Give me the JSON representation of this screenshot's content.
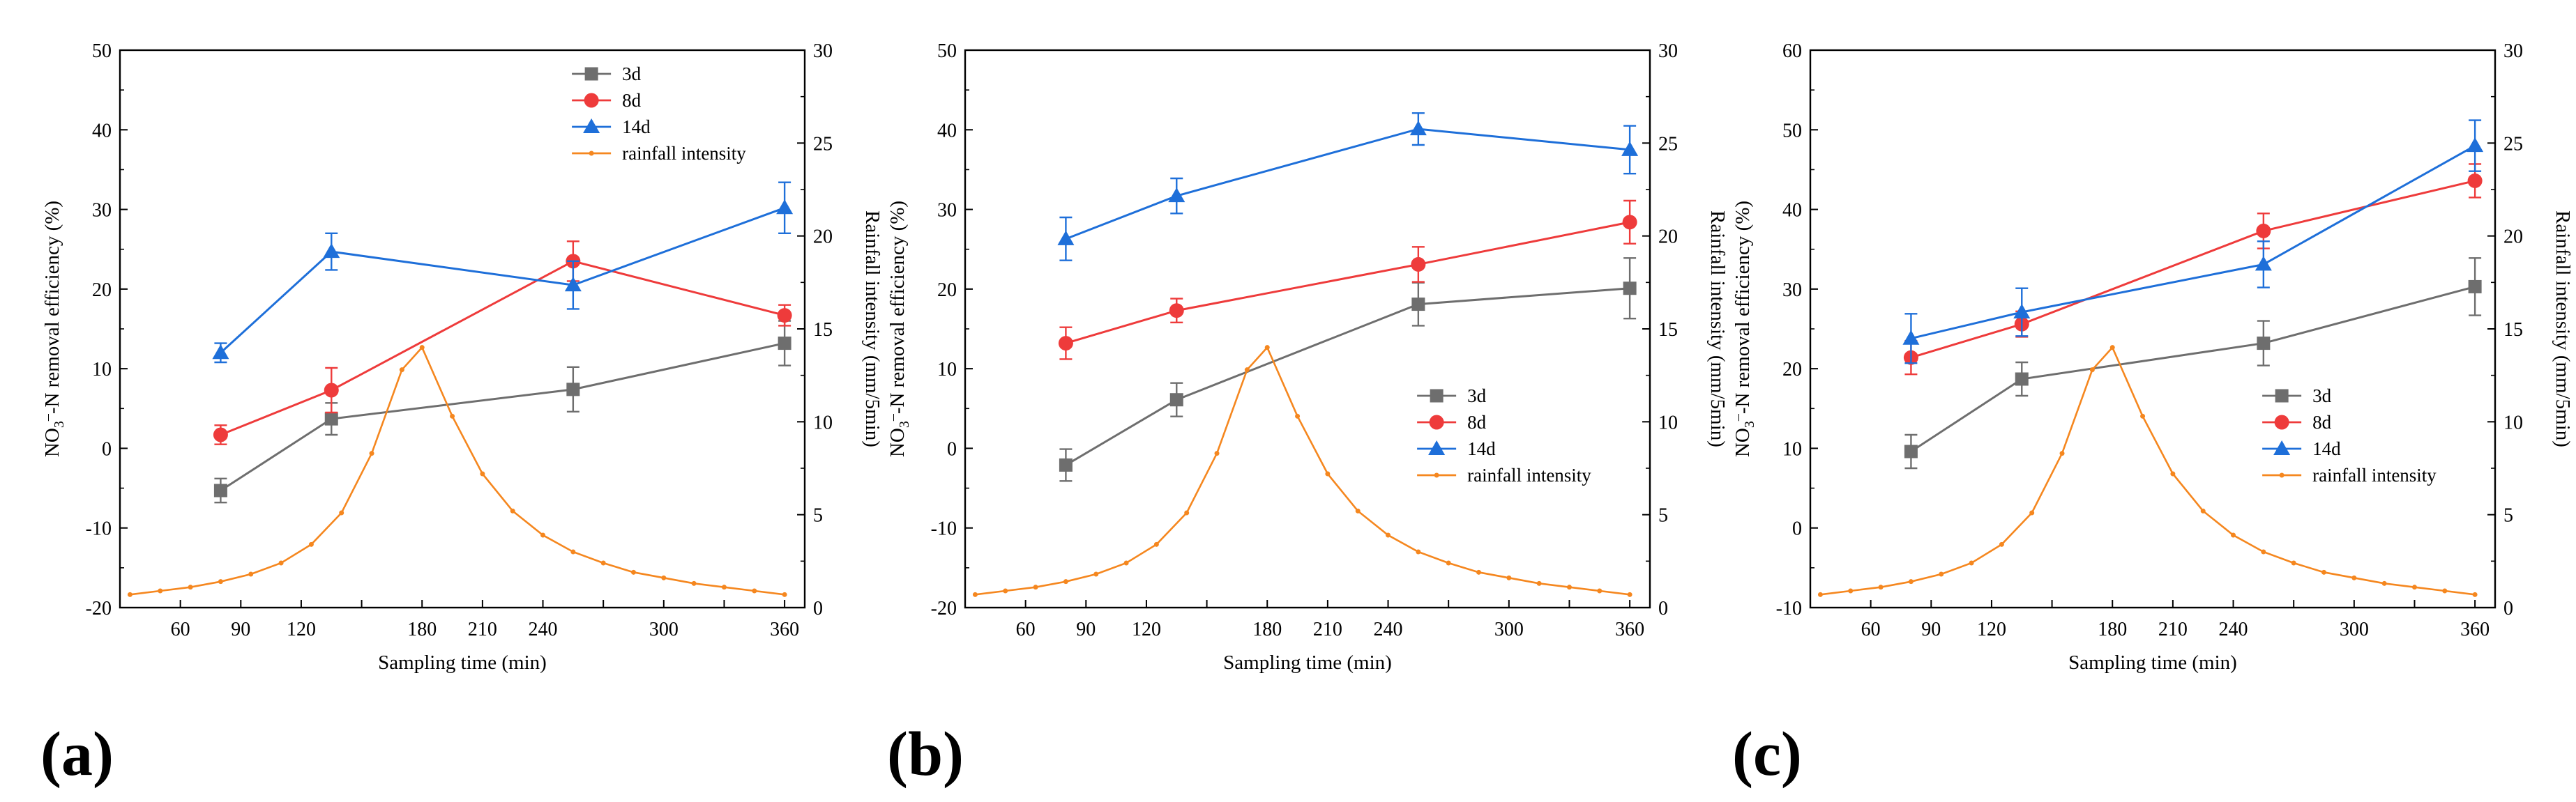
{
  "chart_data": [
    {
      "type": "line",
      "panel_label": "(a)",
      "xlabel": "Sampling time (min)",
      "ylabel": "NO3–-N removal efficiency (%)",
      "ylabel_parts": {
        "base": "NO",
        "sub": "3",
        "sup": "–",
        "rest": "-N removal efficiency (%)"
      },
      "y2label": "Rainfall intensity (mm/5min)",
      "xlim": [
        30,
        370
      ],
      "xticks": [
        60,
        90,
        120,
        150,
        180,
        210,
        240,
        270,
        300,
        330,
        360
      ],
      "xticklabels": [
        "60",
        "90",
        "120",
        "180",
        "210",
        "240",
        "300",
        "360"
      ],
      "xticklabel_values": [
        60,
        90,
        120,
        180,
        210,
        240,
        300,
        360
      ],
      "ylim": [
        -20,
        50
      ],
      "yticks": [
        -20,
        -10,
        0,
        10,
        20,
        30,
        40,
        50
      ],
      "y2lim": [
        0,
        30
      ],
      "y2ticks": [
        0,
        5,
        10,
        15,
        20,
        25,
        30
      ],
      "legend_position": "top-right",
      "series": [
        {
          "name": "3d",
          "color": "#6e6e6e",
          "marker": "square",
          "x": [
            80,
            135,
            255,
            360
          ],
          "values": [
            -5.3,
            3.7,
            7.4,
            13.2
          ],
          "errors": [
            1.5,
            2.0,
            2.8,
            2.8
          ]
        },
        {
          "name": "8d",
          "color": "#ee3b3b",
          "marker": "circle",
          "x": [
            80,
            135,
            255,
            360
          ],
          "values": [
            1.7,
            7.3,
            23.5,
            16.7
          ],
          "errors": [
            1.2,
            2.8,
            2.5,
            1.3
          ]
        },
        {
          "name": "14d",
          "color": "#1e6fd9",
          "marker": "triangle",
          "x": [
            80,
            135,
            255,
            360
          ],
          "values": [
            12.0,
            24.7,
            20.5,
            30.2
          ],
          "errors": [
            1.2,
            2.3,
            3.0,
            3.2
          ]
        },
        {
          "name": "rainfall intensity",
          "color": "#f5871f",
          "marker": "dot",
          "axis": "right",
          "x": [
            35,
            50,
            65,
            80,
            95,
            110,
            125,
            140,
            155,
            170,
            180,
            195,
            210,
            225,
            240,
            255,
            270,
            285,
            300,
            315,
            330,
            345,
            360
          ],
          "values": [
            0.7,
            0.9,
            1.1,
            1.4,
            1.8,
            2.4,
            3.4,
            5.1,
            8.3,
            12.8,
            14.0,
            10.3,
            7.2,
            5.2,
            3.9,
            3.0,
            2.4,
            1.9,
            1.6,
            1.3,
            1.1,
            0.9,
            0.7
          ]
        }
      ]
    },
    {
      "type": "line",
      "panel_label": "(b)",
      "xlabel": "Sampling time (min)",
      "ylabel": "NO3–-N removal efficiency (%)",
      "ylabel_parts": {
        "base": "NO",
        "sub": "3",
        "sup": "–",
        "rest": "-N removal efficiency (%)"
      },
      "y2label": "Rainfall intensity (mm/5min)",
      "xlim": [
        30,
        370
      ],
      "xticks": [
        60,
        90,
        120,
        150,
        180,
        210,
        240,
        270,
        300,
        330,
        360
      ],
      "xticklabels": [
        "60",
        "90",
        "120",
        "180",
        "210",
        "240",
        "300",
        "360"
      ],
      "xticklabel_values": [
        60,
        90,
        120,
        180,
        210,
        240,
        300,
        360
      ],
      "ylim": [
        -20,
        50
      ],
      "yticks": [
        -20,
        -10,
        0,
        10,
        20,
        30,
        40,
        50
      ],
      "y2lim": [
        0,
        30
      ],
      "y2ticks": [
        0,
        5,
        10,
        15,
        20,
        25,
        30
      ],
      "legend_position": "center-right",
      "series": [
        {
          "name": "3d",
          "color": "#6e6e6e",
          "marker": "square",
          "x": [
            80,
            135,
            255,
            360
          ],
          "values": [
            -2.1,
            6.1,
            18.1,
            20.1
          ],
          "errors": [
            2.0,
            2.1,
            2.7,
            3.8
          ]
        },
        {
          "name": "8d",
          "color": "#ee3b3b",
          "marker": "circle",
          "x": [
            80,
            135,
            255,
            360
          ],
          "values": [
            13.2,
            17.3,
            23.1,
            28.4
          ],
          "errors": [
            2.0,
            1.5,
            2.2,
            2.7
          ]
        },
        {
          "name": "14d",
          "color": "#1e6fd9",
          "marker": "triangle",
          "x": [
            80,
            135,
            255,
            360
          ],
          "values": [
            26.3,
            31.7,
            40.1,
            37.5
          ],
          "errors": [
            2.7,
            2.2,
            2.0,
            3.0
          ]
        },
        {
          "name": "rainfall intensity",
          "color": "#f5871f",
          "marker": "dot",
          "axis": "right",
          "x": [
            35,
            50,
            65,
            80,
            95,
            110,
            125,
            140,
            155,
            170,
            180,
            195,
            210,
            225,
            240,
            255,
            270,
            285,
            300,
            315,
            330,
            345,
            360
          ],
          "values": [
            0.7,
            0.9,
            1.1,
            1.4,
            1.8,
            2.4,
            3.4,
            5.1,
            8.3,
            12.8,
            14.0,
            10.3,
            7.2,
            5.2,
            3.9,
            3.0,
            2.4,
            1.9,
            1.6,
            1.3,
            1.1,
            0.9,
            0.7
          ]
        }
      ]
    },
    {
      "type": "line",
      "panel_label": "(c)",
      "xlabel": "Sampling time (min)",
      "ylabel": "NO3–-N removal efficiency (%)",
      "ylabel_parts": {
        "base": "NO",
        "sub": "3",
        "sup": "–",
        "rest": "-N removal efficiency (%)"
      },
      "y2label": "Rainfall intensity (mm/5min)",
      "xlim": [
        30,
        370
      ],
      "xticks": [
        60,
        90,
        120,
        150,
        180,
        210,
        240,
        270,
        300,
        330,
        360
      ],
      "xticklabels": [
        "60",
        "90",
        "120",
        "180",
        "210",
        "240",
        "300",
        "360"
      ],
      "xticklabel_values": [
        60,
        90,
        120,
        180,
        210,
        240,
        300,
        360
      ],
      "ylim": [
        -10,
        60
      ],
      "yticks": [
        -10,
        0,
        10,
        20,
        30,
        40,
        50,
        60
      ],
      "y2lim": [
        0,
        30
      ],
      "y2ticks": [
        0,
        5,
        10,
        15,
        20,
        25,
        30
      ],
      "legend_position": "center-right",
      "series": [
        {
          "name": "3d",
          "color": "#6e6e6e",
          "marker": "square",
          "x": [
            80,
            135,
            255,
            360
          ],
          "values": [
            9.6,
            18.7,
            23.2,
            30.3
          ],
          "errors": [
            2.1,
            2.1,
            2.8,
            3.6
          ]
        },
        {
          "name": "8d",
          "color": "#ee3b3b",
          "marker": "circle",
          "x": [
            80,
            135,
            255,
            360
          ],
          "values": [
            21.4,
            25.6,
            37.3,
            43.6
          ],
          "errors": [
            2.1,
            1.6,
            2.2,
            2.1
          ]
        },
        {
          "name": "14d",
          "color": "#1e6fd9",
          "marker": "triangle",
          "x": [
            80,
            135,
            255,
            360
          ],
          "values": [
            23.8,
            27.1,
            33.1,
            48.0
          ],
          "errors": [
            3.1,
            3.0,
            2.9,
            3.2
          ]
        },
        {
          "name": "rainfall intensity",
          "color": "#f5871f",
          "marker": "dot",
          "axis": "right",
          "x": [
            35,
            50,
            65,
            80,
            95,
            110,
            125,
            140,
            155,
            170,
            180,
            195,
            210,
            225,
            240,
            255,
            270,
            285,
            300,
            315,
            330,
            345,
            360
          ],
          "values": [
            0.7,
            0.9,
            1.1,
            1.4,
            1.8,
            2.4,
            3.4,
            5.1,
            8.3,
            12.8,
            14.0,
            10.3,
            7.2,
            5.2,
            3.9,
            3.0,
            2.4,
            1.9,
            1.6,
            1.3,
            1.1,
            0.9,
            0.7
          ]
        }
      ]
    }
  ]
}
